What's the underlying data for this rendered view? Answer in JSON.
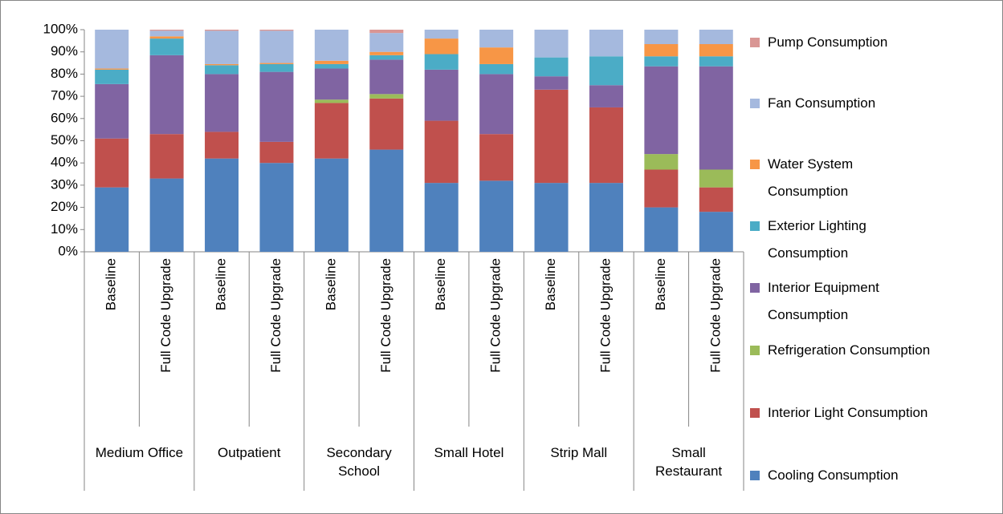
{
  "chart_data": {
    "type": "stacked-bar",
    "groups": [
      "Medium Office",
      "Outpatient",
      "Secondary School",
      "Small Hotel",
      "Strip Mall",
      "Small Restaurant"
    ],
    "categories": [
      "Baseline",
      "Full Code Upgrade",
      "Baseline",
      "Full Code Upgrade",
      "Baseline",
      "Full Code Upgrade",
      "Baseline",
      "Full Code Upgrade",
      "Baseline",
      "Full Code Upgrade",
      "Baseline",
      "Full Code Upgrade"
    ],
    "ylim": [
      0,
      100
    ],
    "yticks": [
      {
        "value": 0,
        "label": "0%"
      },
      {
        "value": 10,
        "label": "10%"
      },
      {
        "value": 20,
        "label": "20%"
      },
      {
        "value": 30,
        "label": "30%"
      },
      {
        "value": 40,
        "label": "40%"
      },
      {
        "value": 50,
        "label": "50%"
      },
      {
        "value": 60,
        "label": "60%"
      },
      {
        "value": 70,
        "label": "70%"
      },
      {
        "value": 80,
        "label": "80%"
      },
      {
        "value": 90,
        "label": "90%"
      },
      {
        "value": 100,
        "label": "100%"
      }
    ],
    "series": [
      {
        "name": "Cooling Consumption",
        "color": "#4F81BD",
        "values": [
          29,
          33,
          42,
          40,
          42,
          46,
          31,
          32,
          31,
          31,
          20,
          18
        ]
      },
      {
        "name": "Interior Light Consumption",
        "color": "#C0504D",
        "values": [
          22,
          20,
          12,
          9.5,
          25,
          23,
          28,
          21,
          42,
          34,
          17,
          11
        ]
      },
      {
        "name": "Refrigeration Consumption",
        "color": "#9BBB59",
        "values": [
          0,
          0,
          0,
          0,
          1.5,
          2,
          0,
          0,
          0,
          0,
          7,
          8
        ]
      },
      {
        "name": "Interior Equipment Consumption",
        "color": "#8064A2",
        "values": [
          24.5,
          35.5,
          26,
          31.5,
          14,
          15.5,
          23,
          27,
          6,
          10,
          39.5,
          46.5
        ]
      },
      {
        "name": "Exterior Lighting Consumption",
        "color": "#4BACC6",
        "values": [
          6.5,
          7.5,
          4,
          3.5,
          2,
          2,
          7,
          4.5,
          8.5,
          13,
          4.5,
          4.5
        ]
      },
      {
        "name": "Water System Consumption",
        "color": "#F79646",
        "values": [
          0.5,
          1,
          0.5,
          0.5,
          1.5,
          1.5,
          7,
          7.5,
          0,
          0,
          5.5,
          5.5
        ]
      },
      {
        "name": "Fan Consumption",
        "color": "#A5B9DE",
        "values": [
          17.5,
          2.5,
          15,
          14.5,
          14,
          8.5,
          4,
          8,
          12.5,
          12,
          6.5,
          6.5
        ]
      },
      {
        "name": "Pump Consumption",
        "color": "#D99694",
        "values": [
          0,
          0.5,
          0.5,
          0.5,
          0,
          1.5,
          0,
          0,
          0,
          0,
          0,
          0
        ]
      }
    ]
  }
}
